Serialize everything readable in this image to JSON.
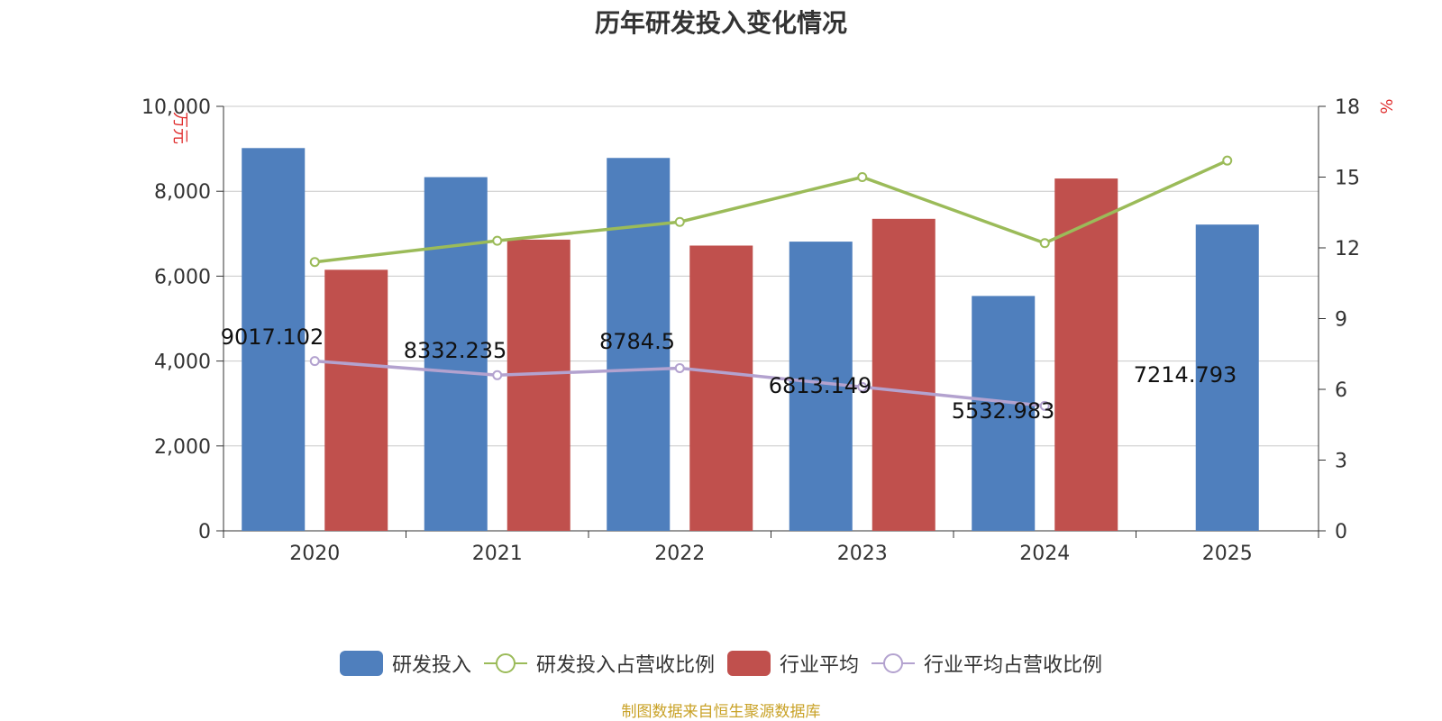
{
  "chart_data": {
    "type": "bar",
    "title": "历年研发投入变化情况",
    "categories": [
      "2020",
      "2021",
      "2022",
      "2023",
      "2024",
      "2025"
    ],
    "y_left": {
      "label": "万元",
      "ticks": [
        "0",
        "2,000",
        "4,000",
        "6,000",
        "8,000",
        "10,000"
      ],
      "min": 0,
      "max": 10000
    },
    "y_right": {
      "label": "%",
      "ticks": [
        "0",
        "3",
        "6",
        "9",
        "12",
        "15",
        "18"
      ],
      "min": 0,
      "max": 18
    },
    "grid": true,
    "legend_position": "bottom",
    "series": [
      {
        "name": "研发投入",
        "type": "bar",
        "axis": "left",
        "color": "#4f7fbd",
        "values": [
          9017.102,
          8332.235,
          8784.5,
          6813.149,
          5532.983,
          7214.793
        ],
        "labels": [
          "9017.102",
          "8332.235",
          "8784.5",
          "6813.149",
          "5532.983",
          "7214.793"
        ]
      },
      {
        "name": "研发投入占营收比例",
        "type": "line",
        "axis": "right",
        "color": "#9bbb59",
        "values": [
          11.4,
          12.3,
          13.1,
          15.0,
          12.2,
          15.7
        ]
      },
      {
        "name": "行业平均",
        "type": "bar",
        "axis": "left",
        "color": "#c0504d",
        "values": [
          6150,
          6860,
          6720,
          7350,
          8300,
          null
        ]
      },
      {
        "name": "行业平均占营收比例",
        "type": "line",
        "axis": "right",
        "color": "#b3a2cf",
        "values": [
          7.2,
          6.6,
          6.9,
          6.1,
          5.3,
          null
        ]
      }
    ]
  },
  "legend": {
    "items": [
      {
        "label": "研发投入",
        "kind": "bar",
        "color": "#4f7fbd"
      },
      {
        "label": "研发投入占营收比例",
        "kind": "line",
        "color": "#9bbb59"
      },
      {
        "label": "行业平均",
        "kind": "bar",
        "color": "#c0504d"
      },
      {
        "label": "行业平均占营收比例",
        "kind": "line",
        "color": "#b3a2cf"
      }
    ]
  },
  "source_note": "制图数据来自恒生聚源数据库"
}
